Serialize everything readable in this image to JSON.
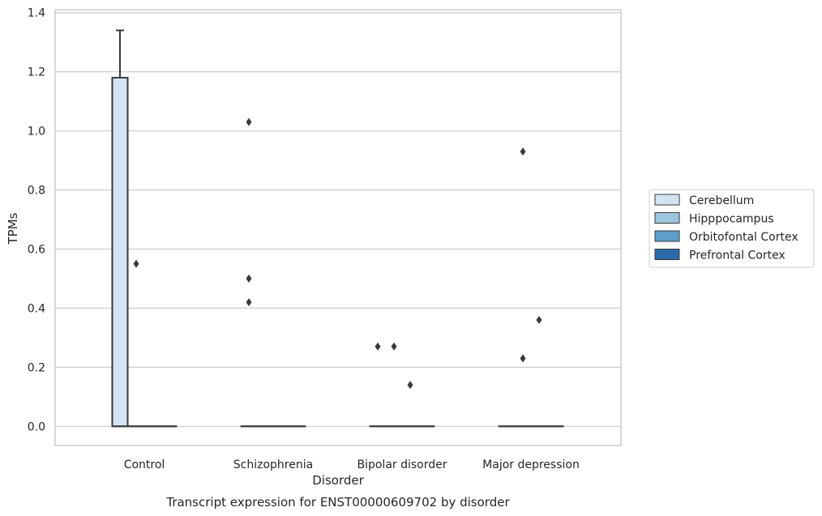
{
  "chart_data": {
    "type": "box",
    "xlabel": "Disorder",
    "ylabel": "TPMs",
    "caption": "Transcript expression for ENST00000609702 by disorder",
    "ylim": [
      -0.065,
      1.41
    ],
    "y_ticks": [
      "0.0",
      "0.2",
      "0.4",
      "0.6",
      "0.8",
      "1.0",
      "1.2",
      "1.4"
    ],
    "grid": "horizontal",
    "legend_placement": "right",
    "categories": [
      "Control",
      "Schizophrenia",
      "Bipolar disorder",
      "Major depression"
    ],
    "series": [
      {
        "name": "Cerebellum",
        "color": "#d4e3f2",
        "boxes": [
          {
            "q1": 0.0,
            "median": 0.0,
            "q3": 1.18,
            "whisker_low": 0.0,
            "whisker_high": 1.34,
            "outliers": []
          },
          {
            "q1": 0.0,
            "median": 0.0,
            "q3": 0.0,
            "whisker_low": 0.0,
            "whisker_high": 0.0,
            "outliers": [
              1.03,
              0.5,
              0.42
            ]
          },
          {
            "q1": 0.0,
            "median": 0.0,
            "q3": 0.0,
            "whisker_low": 0.0,
            "whisker_high": 0.0,
            "outliers": [
              0.27
            ]
          },
          {
            "q1": 0.0,
            "median": 0.0,
            "q3": 0.0,
            "whisker_low": 0.0,
            "whisker_high": 0.0,
            "outliers": []
          }
        ]
      },
      {
        "name": "Hipppocampus",
        "color": "#9dc5dd",
        "boxes": [
          {
            "q1": 0.0,
            "median": 0.0,
            "q3": 0.0,
            "whisker_low": 0.0,
            "whisker_high": 0.0,
            "outliers": [
              0.55
            ]
          },
          {
            "q1": 0.0,
            "median": 0.0,
            "q3": 0.0,
            "whisker_low": 0.0,
            "whisker_high": 0.0,
            "outliers": []
          },
          {
            "q1": 0.0,
            "median": 0.0,
            "q3": 0.0,
            "whisker_low": 0.0,
            "whisker_high": 0.0,
            "outliers": [
              0.27
            ]
          },
          {
            "q1": 0.0,
            "median": 0.0,
            "q3": 0.0,
            "whisker_low": 0.0,
            "whisker_high": 0.0,
            "outliers": [
              0.93,
              0.23
            ]
          }
        ]
      },
      {
        "name": "Orbitofontal Cortex",
        "color": "#5c9dc9",
        "boxes": [
          {
            "q1": 0.0,
            "median": 0.0,
            "q3": 0.0,
            "whisker_low": 0.0,
            "whisker_high": 0.0,
            "outliers": []
          },
          {
            "q1": 0.0,
            "median": 0.0,
            "q3": 0.0,
            "whisker_low": 0.0,
            "whisker_high": 0.0,
            "outliers": []
          },
          {
            "q1": 0.0,
            "median": 0.0,
            "q3": 0.0,
            "whisker_low": 0.0,
            "whisker_high": 0.0,
            "outliers": [
              0.14
            ]
          },
          {
            "q1": 0.0,
            "median": 0.0,
            "q3": 0.0,
            "whisker_low": 0.0,
            "whisker_high": 0.0,
            "outliers": [
              0.36
            ]
          }
        ]
      },
      {
        "name": "Prefrontal Cortex",
        "color": "#2a6aa8",
        "boxes": [
          {
            "q1": 0.0,
            "median": 0.0,
            "q3": 0.0,
            "whisker_low": 0.0,
            "whisker_high": 0.0,
            "outliers": []
          },
          {
            "q1": 0.0,
            "median": 0.0,
            "q3": 0.0,
            "whisker_low": 0.0,
            "whisker_high": 0.0,
            "outliers": []
          },
          {
            "q1": 0.0,
            "median": 0.0,
            "q3": 0.0,
            "whisker_low": 0.0,
            "whisker_high": 0.0,
            "outliers": []
          },
          {
            "q1": 0.0,
            "median": 0.0,
            "q3": 0.0,
            "whisker_low": 0.0,
            "whisker_high": 0.0,
            "outliers": []
          }
        ]
      }
    ]
  }
}
